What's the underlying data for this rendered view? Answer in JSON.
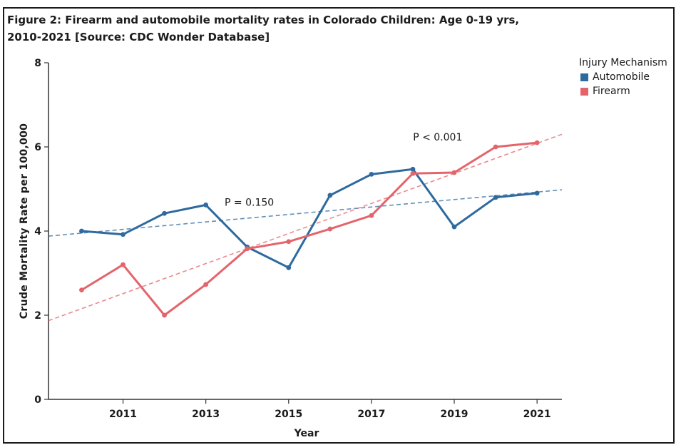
{
  "chart_data": {
    "type": "line",
    "title": "Figure 2: Firearm and automobile mortality rates in Colorado Children: Age 0-19 yrs,",
    "subtitle": "2010-2021 [Source: CDC Wonder Database]",
    "xlabel": "Year",
    "ylabel": "Crude Mortality Rate per 100,000",
    "x": [
      2010,
      2011,
      2012,
      2013,
      2014,
      2015,
      2016,
      2017,
      2018,
      2019,
      2020,
      2021
    ],
    "xlim": [
      2009.2,
      2021.6
    ],
    "ylim": [
      0,
      8
    ],
    "xticks": [
      "2011",
      "2013",
      "2015",
      "2017",
      "2019",
      "2021"
    ],
    "yticks": [
      "0",
      "2",
      "4",
      "6",
      "8"
    ],
    "grid": false,
    "legend_title": "Injury Mechanism",
    "legend_position": "top-right",
    "series": [
      {
        "name": "Automobile",
        "color": "#2e6a9e",
        "values": [
          4.0,
          3.92,
          4.42,
          4.62,
          3.62,
          3.13,
          4.85,
          5.35,
          5.47,
          4.1,
          4.8,
          4.9
        ],
        "trend": [
          3.88,
          4.98
        ],
        "annotation": "P = 0.150",
        "annotation_at": [
          2014.05,
          4.6
        ]
      },
      {
        "name": "Firearm",
        "color": "#e4646b",
        "values": [
          2.6,
          3.2,
          2.0,
          2.73,
          3.58,
          3.75,
          4.05,
          4.37,
          5.37,
          5.39,
          6.0,
          6.1
        ],
        "trend": [
          1.87,
          6.3
        ],
        "annotation": "P < 0.001",
        "annotation_at": [
          2018.6,
          6.15
        ]
      }
    ]
  }
}
